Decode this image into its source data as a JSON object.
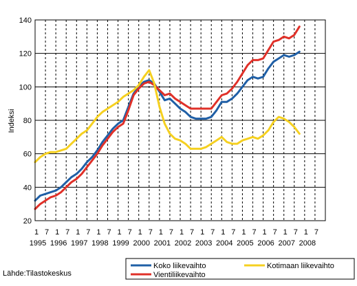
{
  "chart_data": {
    "type": "line",
    "ylabel": "Indeksi",
    "ylim": [
      20,
      140
    ],
    "yticks": [
      20,
      40,
      60,
      80,
      100,
      120,
      140
    ],
    "x_tick_month_labels": [
      "1",
      "7",
      "1",
      "7",
      "1",
      "7",
      "1",
      "7",
      "1",
      "7",
      "1",
      "7",
      "1",
      "7",
      "1",
      "7",
      "1",
      "7",
      "1",
      "7",
      "1",
      "7",
      "1",
      "7",
      "1",
      "7",
      "1",
      "7"
    ],
    "x_year_labels": [
      "1995",
      "1996",
      "1997",
      "1998",
      "1999",
      "2000",
      "2001",
      "2002",
      "2003",
      "2004",
      "2005",
      "2006",
      "2007",
      "2008"
    ],
    "x_start": "1995-01",
    "x_step": "quarter",
    "grid": true,
    "legend_placement": "bottom",
    "series": [
      {
        "name": "Koko liikevaihto",
        "color": "#1f5fa6",
        "values": [
          32,
          35,
          36,
          37,
          38,
          40,
          43,
          46,
          48,
          51,
          55,
          58,
          62,
          67,
          71,
          75,
          78,
          80,
          88,
          96,
          100,
          103,
          104,
          102,
          97,
          92,
          93,
          90,
          87,
          85,
          82,
          81,
          81,
          81,
          82,
          86,
          91,
          91,
          93,
          96,
          100,
          104,
          106,
          105,
          106,
          111,
          115,
          117,
          119,
          118,
          119,
          121
        ]
      },
      {
        "name": "Vientiliikevaihto",
        "color": "#e03028",
        "values": [
          27,
          30,
          32,
          34,
          35,
          37,
          40,
          43,
          45,
          48,
          52,
          56,
          60,
          65,
          69,
          73,
          76,
          78,
          86,
          95,
          99,
          102,
          103,
          101,
          98,
          95,
          96,
          93,
          91,
          89,
          87,
          87,
          87,
          87,
          87,
          91,
          95,
          96,
          99,
          103,
          108,
          113,
          116,
          116,
          117,
          122,
          127,
          128,
          130,
          129,
          131,
          136
        ]
      },
      {
        "name": "Kotimaan liikevaihto",
        "color": "#f5d020",
        "values": [
          55,
          58,
          60,
          61,
          61,
          62,
          63,
          66,
          69,
          72,
          74,
          78,
          82,
          85,
          87,
          89,
          91,
          94,
          96,
          98,
          101,
          106,
          110,
          102,
          88,
          78,
          72,
          69,
          68,
          66,
          63,
          63,
          63,
          64,
          66,
          68,
          70,
          67,
          66,
          66,
          68,
          69,
          70,
          69,
          71,
          74,
          79,
          82,
          81,
          79,
          76,
          72
        ]
      }
    ]
  },
  "source_text": "Lähde:Tilastokeskus"
}
